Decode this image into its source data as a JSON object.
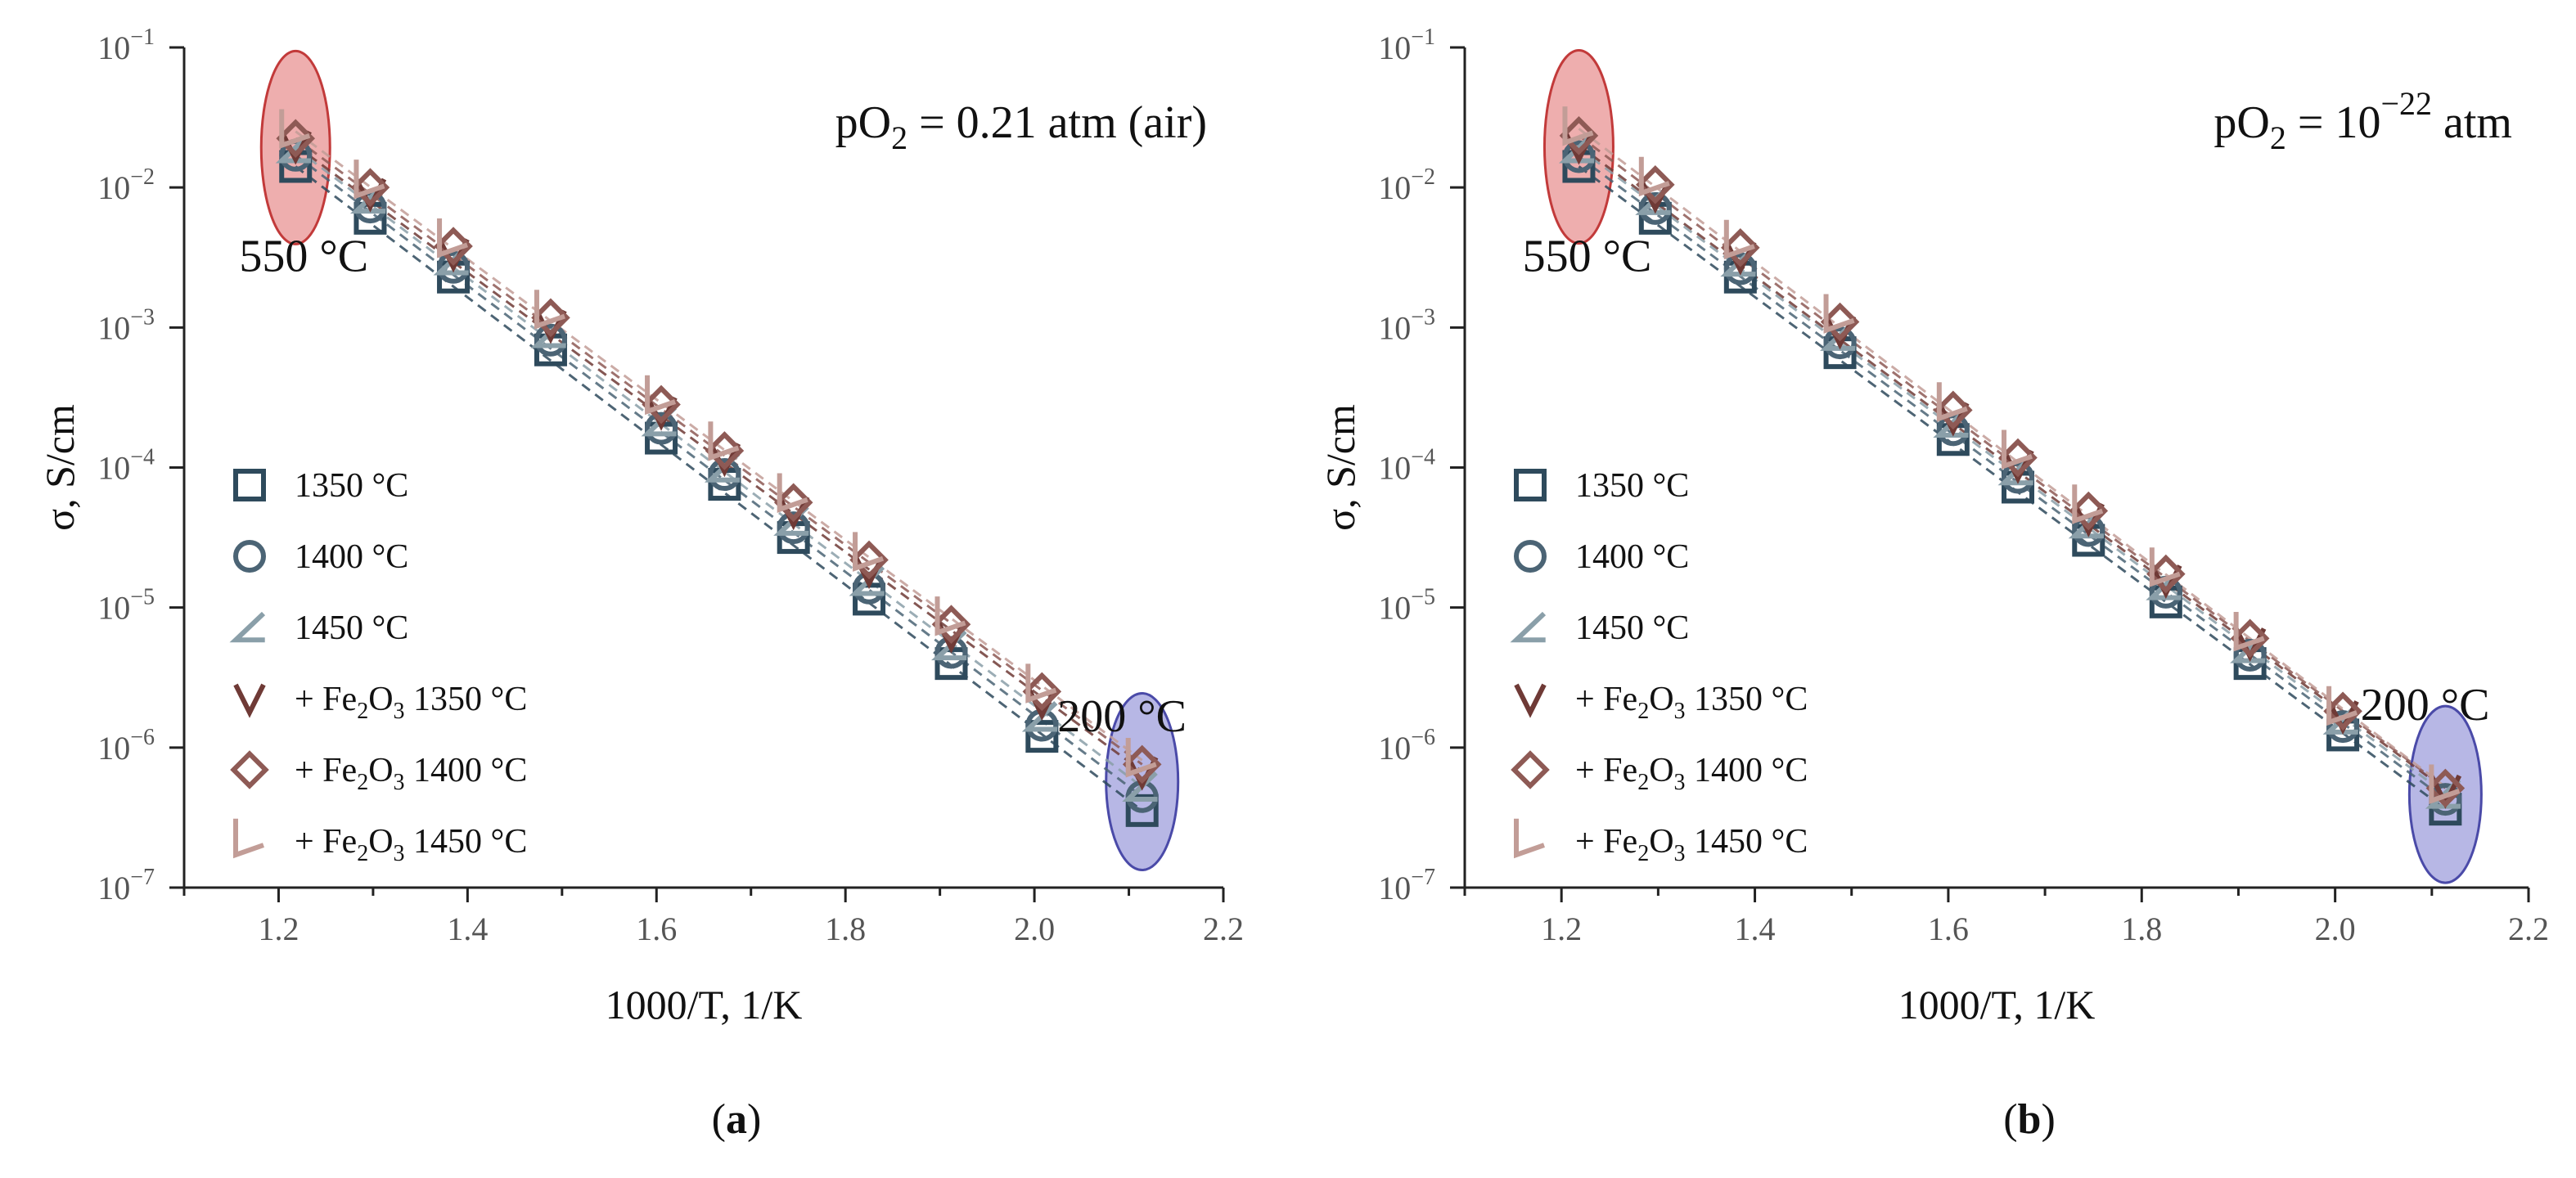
{
  "chart_data": [
    {
      "type": "scatter",
      "xlabel": "1000/T, 1/K",
      "ylabel": "σ, S/cm",
      "xlim": [
        1.1,
        2.2
      ],
      "ylim_log10": [
        -7,
        -1
      ],
      "xticks": [
        1.2,
        1.4,
        1.6,
        1.8,
        2.0,
        2.2
      ],
      "xtick_labels": [
        "1.2",
        "1.4",
        "1.6",
        "1.8",
        "2.0",
        "2.2"
      ],
      "ytick_exponents": [
        -7,
        -6,
        -5,
        -4,
        -3,
        -2,
        -1
      ],
      "condition_label": "pO2 = 0.21 atm (air)",
      "condition_parts": {
        "pre": "pO",
        "sub": "2",
        "mid": " = 0.21 atm (air)",
        "sup": ""
      },
      "annotations": [
        {
          "text": "550 °C",
          "x": 1.218,
          "logy": -1.75
        },
        {
          "text": "200 °C",
          "x": 2.11,
          "logy": -6.0
        }
      ],
      "panel_label": "a",
      "x": [
        1.218,
        1.297,
        1.385,
        1.488,
        1.605,
        1.672,
        1.745,
        1.825,
        1.912,
        2.008,
        2.114
      ],
      "series": [
        {
          "name": "1350 °C",
          "marker": "square",
          "color": "#2e4a5c",
          "logy": [
            -1.85,
            -2.22,
            -2.64,
            -3.16,
            -3.79,
            -4.12,
            -4.5,
            -4.94,
            -5.4,
            -5.92,
            -6.45
          ]
        },
        {
          "name": "1400 °C",
          "marker": "circle",
          "color": "#4b6475",
          "logy": [
            -1.77,
            -2.14,
            -2.57,
            -3.09,
            -3.72,
            -4.05,
            -4.43,
            -4.86,
            -5.32,
            -5.84,
            -6.35
          ]
        },
        {
          "name": "1450 °C",
          "marker": "triangle-left",
          "color": "#8a9fa9",
          "logy": [
            -1.72,
            -2.08,
            -2.52,
            -3.04,
            -3.67,
            -4.0,
            -4.38,
            -4.81,
            -5.27,
            -5.78,
            -6.28
          ]
        },
        {
          "name": "+ Fe2O3 1350 °C",
          "marker": "triangle-down",
          "color": "#6f3a36",
          "logy": [
            -1.7,
            -2.04,
            -2.47,
            -2.98,
            -3.6,
            -3.93,
            -4.31,
            -4.73,
            -5.19,
            -5.67,
            -6.17
          ]
        },
        {
          "name": "+ Fe2O3 1400 °C",
          "marker": "diamond",
          "color": "#8e5a55",
          "logy": [
            -1.65,
            -2.0,
            -2.42,
            -2.93,
            -3.55,
            -3.88,
            -4.25,
            -4.66,
            -5.12,
            -5.6,
            -6.12
          ]
        },
        {
          "name": "+ Fe2O3 1450 °C",
          "marker": "triangle-right",
          "color": "#c29d97",
          "logy": [
            -1.6,
            -1.96,
            -2.38,
            -2.89,
            -3.5,
            -3.83,
            -4.2,
            -4.62,
            -5.08,
            -5.56,
            -6.09
          ]
        }
      ]
    },
    {
      "type": "scatter",
      "xlabel": "1000/T, 1/K",
      "ylabel": "σ, S/cm",
      "xlim": [
        1.1,
        2.2
      ],
      "ylim_log10": [
        -7,
        -1
      ],
      "xticks": [
        1.2,
        1.4,
        1.6,
        1.8,
        2.0,
        2.2
      ],
      "xtick_labels": [
        "1.2",
        "1.4",
        "1.6",
        "1.8",
        "2.0",
        "2.2"
      ],
      "ytick_exponents": [
        -7,
        -6,
        -5,
        -4,
        -3,
        -2,
        -1
      ],
      "condition_label": "pO2 = 10−22 atm",
      "condition_parts": {
        "pre": "pO",
        "sub": "2",
        "mid": " = 10",
        "sup": "−22",
        "post": " atm"
      },
      "annotations": [
        {
          "text": "550 °C",
          "x": 1.218,
          "logy": -1.75
        },
        {
          "text": "200 °C",
          "x": 2.11,
          "logy": -5.92
        }
      ],
      "panel_label": "b",
      "x": [
        1.218,
        1.297,
        1.385,
        1.488,
        1.605,
        1.672,
        1.745,
        1.825,
        1.912,
        2.008,
        2.114
      ],
      "series": [
        {
          "name": "1350 °C",
          "marker": "square",
          "color": "#2e4a5c",
          "logy": [
            -1.85,
            -2.22,
            -2.64,
            -3.18,
            -3.8,
            -4.14,
            -4.52,
            -4.96,
            -5.4,
            -5.91,
            -6.44
          ]
        },
        {
          "name": "1400 °C",
          "marker": "circle",
          "color": "#4b6475",
          "logy": [
            -1.78,
            -2.15,
            -2.58,
            -3.11,
            -3.73,
            -4.07,
            -4.45,
            -4.89,
            -5.34,
            -5.85,
            -6.37
          ]
        },
        {
          "name": "1450 °C",
          "marker": "triangle-left",
          "color": "#8a9fa9",
          "logy": [
            -1.72,
            -2.09,
            -2.53,
            -3.06,
            -3.68,
            -4.02,
            -4.4,
            -4.84,
            -5.29,
            -5.8,
            -6.33
          ]
        },
        {
          "name": "+ Fe2O3 1350 °C",
          "marker": "triangle-down",
          "color": "#6f3a36",
          "logy": [
            -1.7,
            -2.05,
            -2.49,
            -3.02,
            -3.64,
            -3.98,
            -4.36,
            -4.8,
            -5.25,
            -5.77,
            -6.3
          ]
        },
        {
          "name": "+ Fe2O3 1400 °C",
          "marker": "diamond",
          "color": "#8e5a55",
          "logy": [
            -1.63,
            -1.98,
            -2.43,
            -2.96,
            -3.59,
            -3.93,
            -4.31,
            -4.76,
            -5.22,
            -5.74,
            -6.29
          ]
        },
        {
          "name": "+ Fe2O3 1450 °C",
          "marker": "triangle-right",
          "color": "#c29d97",
          "logy": [
            -1.58,
            -1.94,
            -2.39,
            -2.92,
            -3.55,
            -3.89,
            -4.28,
            -4.73,
            -5.19,
            -5.72,
            -6.28
          ]
        }
      ]
    }
  ],
  "legend": {
    "labels": [
      "1350 °C",
      "1400 °C",
      "1450 °C",
      "+ Fe2O3 1350 °C",
      "+ Fe2O3 1400 °C",
      "+ Fe2O3 1450 °C"
    ]
  },
  "highlight_colors": {
    "hot": "#e06b6b",
    "cold": "#7b7bd0"
  }
}
